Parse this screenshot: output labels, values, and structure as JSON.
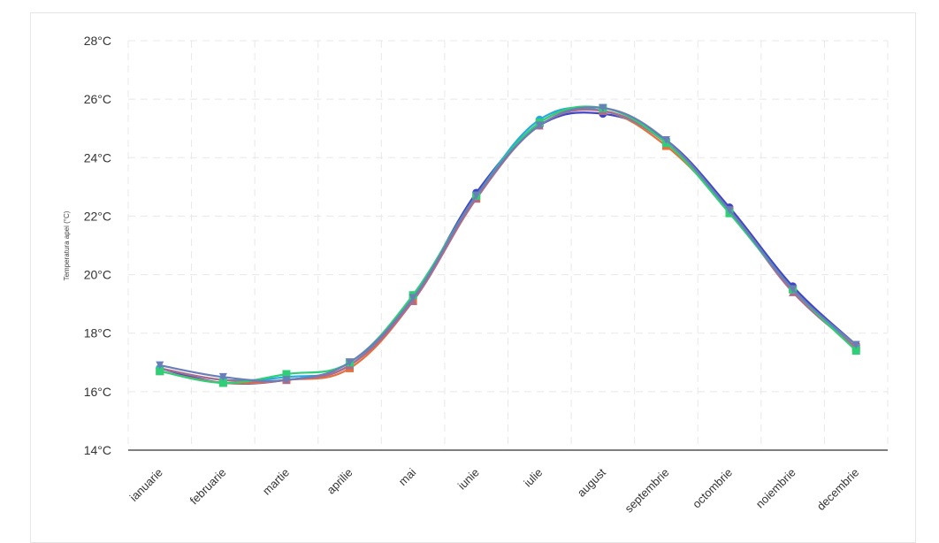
{
  "chart_data": {
    "type": "line",
    "title": "",
    "xlabel": "",
    "ylabel": "Temperatura apei (°C)",
    "ylim": [
      14,
      28
    ],
    "y_ticks": [
      "14°C",
      "16°C",
      "18°C",
      "20°C",
      "22°C",
      "24°C",
      "26°C",
      "28°C"
    ],
    "grid": true,
    "legend": "none",
    "categories": [
      "ianuarie",
      "februarie",
      "martie",
      "aprilie",
      "mai",
      "iunie",
      "iulie",
      "august",
      "septembrie",
      "octombrie",
      "noiembrie",
      "decembrie"
    ],
    "series": [
      {
        "color": "#3f45c9",
        "marker": "circle",
        "values": [
          16.8,
          16.3,
          16.4,
          16.9,
          19.2,
          22.8,
          25.1,
          25.5,
          24.6,
          22.3,
          19.6,
          17.6
        ]
      },
      {
        "color": "#e8703a",
        "marker": "square",
        "values": [
          16.7,
          16.3,
          16.4,
          16.8,
          19.1,
          22.6,
          25.2,
          25.6,
          24.4,
          22.2,
          19.5,
          17.5
        ]
      },
      {
        "color": "#25a9e0",
        "marker": "circle",
        "values": [
          16.8,
          16.4,
          16.5,
          16.9,
          19.3,
          22.7,
          25.3,
          25.6,
          24.5,
          22.2,
          19.5,
          17.5
        ]
      },
      {
        "color": "#b06a8a",
        "marker": "triangle",
        "values": [
          16.8,
          16.4,
          16.4,
          16.9,
          19.1,
          22.6,
          25.1,
          25.6,
          24.5,
          22.2,
          19.4,
          17.5
        ]
      },
      {
        "color": "#2fcf78",
        "marker": "square",
        "values": [
          16.7,
          16.3,
          16.6,
          17.0,
          19.3,
          22.7,
          25.2,
          25.7,
          24.5,
          22.1,
          19.5,
          17.4
        ]
      },
      {
        "color": "#6a7fb8",
        "marker": "triangle-down",
        "values": [
          16.9,
          16.5,
          16.4,
          17.0,
          19.2,
          22.7,
          25.1,
          25.7,
          24.6,
          22.2,
          19.5,
          17.6
        ]
      }
    ]
  }
}
